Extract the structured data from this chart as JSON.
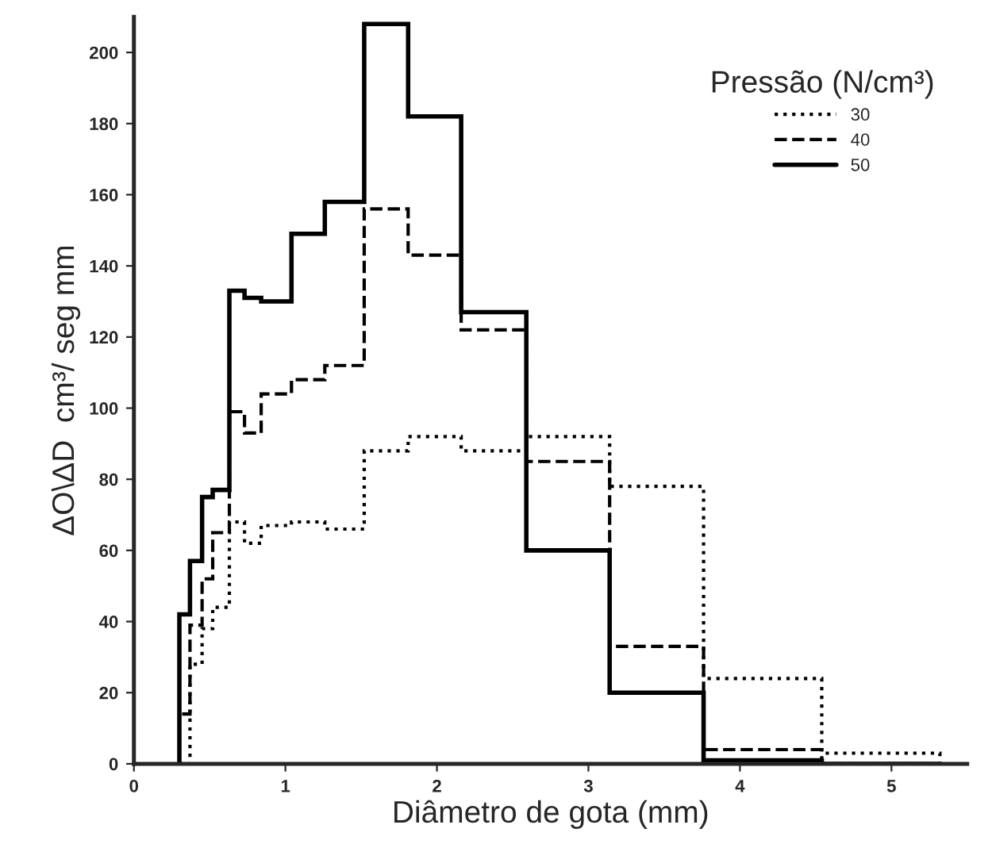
{
  "chart_data": {
    "type": "histogram",
    "xlabel": "Diâmetro de gota (mm)",
    "ylabel": "ΔO\\ΔD  cm³/ seg mm",
    "legend_title": "Pressão (N/cm³)",
    "bins": [
      0.3,
      0.37,
      0.45,
      0.52,
      0.63,
      0.73,
      0.84,
      1.04,
      1.26,
      1.52,
      1.81,
      2.16,
      2.59,
      3.14,
      3.76,
      4.54,
      5.32
    ],
    "series": [
      {
        "name": "30",
        "color": "#000000",
        "line_style": "dotted",
        "values": [
          0,
          28,
          38,
          44,
          68,
          62,
          67,
          68,
          66,
          88,
          92,
          88,
          92,
          78,
          24,
          3
        ]
      },
      {
        "name": "40",
        "color": "#000000",
        "line_style": "dashed",
        "values": [
          14,
          39,
          52,
          65,
          99,
          93,
          104,
          108,
          112,
          156,
          143,
          122,
          85,
          33,
          4,
          0
        ]
      },
      {
        "name": "50",
        "color": "#000000",
        "line_style": "solid",
        "values": [
          42,
          57,
          75,
          77,
          133,
          131,
          130,
          149,
          158,
          208,
          182,
          127,
          60,
          20,
          1,
          0
        ]
      }
    ],
    "xlim": [
      0,
      5.5
    ],
    "ylim": [
      0,
      210
    ],
    "xticks": [
      0,
      1,
      2,
      3,
      4,
      5
    ],
    "yticks": [
      0,
      20,
      40,
      60,
      80,
      100,
      120,
      140,
      160,
      180,
      200
    ],
    "grid": false,
    "legend": "top right"
  }
}
